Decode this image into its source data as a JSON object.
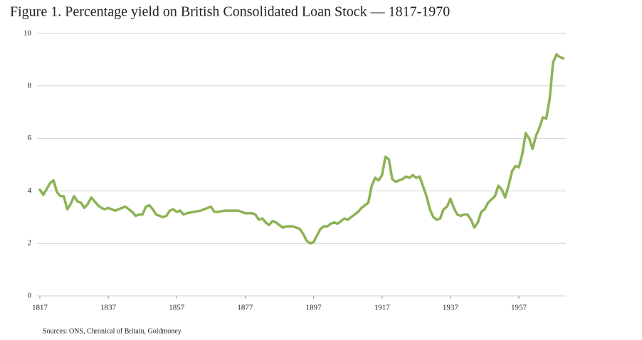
{
  "chart_data": {
    "type": "line",
    "title": "Figure 1. Percentage yield on British Consolidated Loan Stock — 1817-1970",
    "source": "Sources: ONS, Chronical of Britain, Goldmoney",
    "x": [
      1817,
      1818,
      1820,
      1821,
      1822,
      1823,
      1824,
      1825,
      1826,
      1827,
      1828,
      1829,
      1830,
      1831,
      1832,
      1833,
      1834,
      1835,
      1836,
      1837,
      1838,
      1839,
      1840,
      1841,
      1842,
      1843,
      1844,
      1845,
      1846,
      1847,
      1848,
      1849,
      1850,
      1851,
      1852,
      1853,
      1854,
      1855,
      1856,
      1857,
      1858,
      1859,
      1860,
      1862,
      1864,
      1865,
      1866,
      1867,
      1868,
      1869,
      1871,
      1873,
      1875,
      1877,
      1879,
      1880,
      1881,
      1882,
      1883,
      1884,
      1885,
      1886,
      1887,
      1888,
      1889,
      1891,
      1893,
      1894,
      1895,
      1896,
      1897,
      1898,
      1899,
      1900,
      1901,
      1902,
      1903,
      1904,
      1905,
      1906,
      1907,
      1908,
      1909,
      1910,
      1911,
      1912,
      1913,
      1914,
      1915,
      1916,
      1917,
      1918,
      1919,
      1920,
      1921,
      1922,
      1923,
      1924,
      1925,
      1926,
      1927,
      1928,
      1930,
      1931,
      1932,
      1933,
      1934,
      1935,
      1936,
      1937,
      1938,
      1939,
      1940,
      1941,
      1942,
      1943,
      1944,
      1945,
      1946,
      1947,
      1948,
      1950,
      1951,
      1952,
      1953,
      1954,
      1955,
      1956,
      1957,
      1958,
      1959,
      1960,
      1961,
      1962,
      1963,
      1964,
      1965,
      1966,
      1967,
      1968,
      1969,
      1970
    ],
    "series": [
      {
        "color": "#8db255",
        "values": [
          4.05,
          3.85,
          4.3,
          4.4,
          3.95,
          3.8,
          3.8,
          3.3,
          3.5,
          3.8,
          3.6,
          3.55,
          3.35,
          3.5,
          3.75,
          3.6,
          3.45,
          3.35,
          3.3,
          3.35,
          3.3,
          3.25,
          3.3,
          3.35,
          3.4,
          3.3,
          3.2,
          3.05,
          3.1,
          3.1,
          3.4,
          3.45,
          3.3,
          3.1,
          3.05,
          3.0,
          3.05,
          3.25,
          3.3,
          3.2,
          3.25,
          3.1,
          3.15,
          3.2,
          3.25,
          3.3,
          3.35,
          3.4,
          3.2,
          3.2,
          3.25,
          3.25,
          3.25,
          3.15,
          3.15,
          3.1,
          2.9,
          2.95,
          2.8,
          2.7,
          2.85,
          2.8,
          2.7,
          2.6,
          2.65,
          2.65,
          2.55,
          2.35,
          2.1,
          2.0,
          2.05,
          2.3,
          2.55,
          2.65,
          2.65,
          2.75,
          2.8,
          2.75,
          2.85,
          2.95,
          2.9,
          3.0,
          3.1,
          3.2,
          3.35,
          3.45,
          3.55,
          4.2,
          4.5,
          4.4,
          4.6,
          5.3,
          5.2,
          4.45,
          4.35,
          4.4,
          4.45,
          4.55,
          4.5,
          4.6,
          4.5,
          4.55,
          3.8,
          3.3,
          3.0,
          2.9,
          2.95,
          3.3,
          3.4,
          3.7,
          3.35,
          3.1,
          3.05,
          3.1,
          3.1,
          2.9,
          2.6,
          2.8,
          3.2,
          3.3,
          3.55,
          3.8,
          4.2,
          4.05,
          3.75,
          4.2,
          4.75,
          4.95,
          4.9,
          5.4,
          6.2,
          6.0,
          5.6,
          6.1,
          6.4,
          6.8,
          6.75,
          7.5,
          8.9,
          9.2,
          9.1,
          9.05
        ]
      }
    ],
    "xlim": [
      1817,
      1970
    ],
    "xticks": [
      1817,
      1837,
      1857,
      1877,
      1897,
      1917,
      1937,
      1957
    ],
    "ylim": [
      0,
      10
    ],
    "yticks": [
      0,
      2,
      4,
      6,
      8,
      10
    ],
    "grid": true
  }
}
